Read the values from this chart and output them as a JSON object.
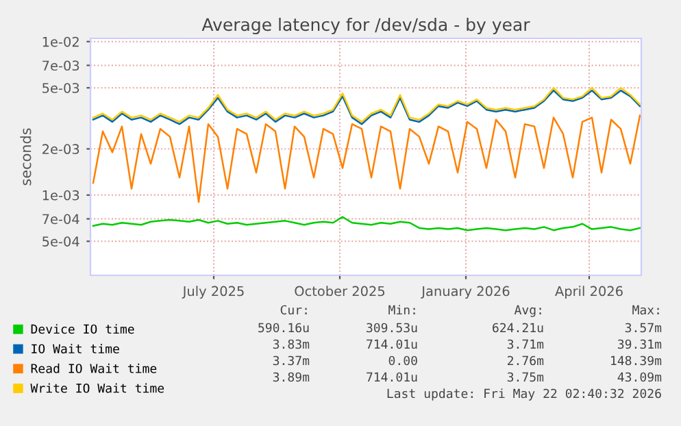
{
  "chart_data": {
    "type": "line",
    "title": "Average latency for /dev/sda - by year",
    "ylabel": "seconds",
    "log": "y",
    "grid": true,
    "legend": "bottom left",
    "marker": "none",
    "line_style": "solid",
    "ylim": [
      0.0003,
      0.0105
    ],
    "yticks": [
      {
        "value": 0.01,
        "label": "1e-02"
      },
      {
        "value": 0.007,
        "label": "7e-03"
      },
      {
        "value": 0.005,
        "label": "5e-03"
      },
      {
        "value": 0.002,
        "label": "2e-03"
      },
      {
        "value": 0.001,
        "label": "1e-03"
      },
      {
        "value": 0.0007,
        "label": "7e-04"
      },
      {
        "value": 0.0005,
        "label": "5e-04"
      }
    ],
    "xlim": [
      "2025-04-15",
      "2026-05-22"
    ],
    "xticks": [
      {
        "value": "2025-07-14",
        "label": "July 2025"
      },
      {
        "value": "2025-10-14",
        "label": "October 2025"
      },
      {
        "value": "2026-01-14",
        "label": "January 2026"
      },
      {
        "value": "2026-04-14",
        "label": "April 2026"
      }
    ],
    "x": [
      "2025-04-17",
      "2025-04-24",
      "2025-05-01",
      "2025-05-08",
      "2025-05-15",
      "2025-05-22",
      "2025-05-29",
      "2025-06-05",
      "2025-06-12",
      "2025-06-19",
      "2025-06-26",
      "2025-07-03",
      "2025-07-10",
      "2025-07-17",
      "2025-07-24",
      "2025-07-31",
      "2025-08-07",
      "2025-08-14",
      "2025-08-21",
      "2025-08-28",
      "2025-09-04",
      "2025-09-11",
      "2025-09-18",
      "2025-09-25",
      "2025-10-02",
      "2025-10-09",
      "2025-10-16",
      "2025-10-23",
      "2025-10-30",
      "2025-11-06",
      "2025-11-13",
      "2025-11-20",
      "2025-11-27",
      "2025-12-04",
      "2025-12-11",
      "2025-12-18",
      "2025-12-25",
      "2026-01-01",
      "2026-01-08",
      "2026-01-15",
      "2026-01-22",
      "2026-01-29",
      "2026-02-05",
      "2026-02-12",
      "2026-02-19",
      "2026-02-26",
      "2026-03-05",
      "2026-03-12",
      "2026-03-19",
      "2026-03-26",
      "2026-04-02",
      "2026-04-09",
      "2026-04-16",
      "2026-04-23",
      "2026-04-30",
      "2026-05-07",
      "2026-05-14",
      "2026-05-21"
    ],
    "series": [
      {
        "name": "Device IO time",
        "color": "#00cc00",
        "values": [
          0.00063,
          0.00065,
          0.00064,
          0.00066,
          0.00065,
          0.00064,
          0.00067,
          0.00068,
          0.00069,
          0.00068,
          0.00067,
          0.00069,
          0.00066,
          0.00068,
          0.00065,
          0.00066,
          0.00064,
          0.00065,
          0.00066,
          0.00067,
          0.00068,
          0.00066,
          0.00064,
          0.00066,
          0.00067,
          0.00066,
          0.00072,
          0.00066,
          0.00065,
          0.00064,
          0.00066,
          0.00065,
          0.00067,
          0.00066,
          0.00061,
          0.0006,
          0.00061,
          0.0006,
          0.00061,
          0.00059,
          0.0006,
          0.00061,
          0.0006,
          0.00059,
          0.0006,
          0.00061,
          0.0006,
          0.00062,
          0.00059,
          0.00061,
          0.00062,
          0.00065,
          0.0006,
          0.00061,
          0.00062,
          0.0006,
          0.00059,
          0.00061
        ]
      },
      {
        "name": "IO Wait time",
        "color": "#0066b3",
        "values": [
          0.0031,
          0.0033,
          0.003,
          0.0034,
          0.0031,
          0.0032,
          0.003,
          0.0033,
          0.0031,
          0.0029,
          0.0032,
          0.0031,
          0.0036,
          0.0043,
          0.0035,
          0.0032,
          0.0033,
          0.0031,
          0.0034,
          0.003,
          0.0033,
          0.0032,
          0.0034,
          0.0032,
          0.0033,
          0.0035,
          0.0044,
          0.0032,
          0.0029,
          0.0033,
          0.0035,
          0.0032,
          0.0043,
          0.0031,
          0.003,
          0.0033,
          0.0038,
          0.0037,
          0.004,
          0.0038,
          0.0041,
          0.0036,
          0.0035,
          0.0036,
          0.0035,
          0.0036,
          0.0037,
          0.0041,
          0.0048,
          0.0042,
          0.0041,
          0.0043,
          0.0048,
          0.0042,
          0.0043,
          0.0048,
          0.0044,
          0.0038
        ]
      },
      {
        "name": "Read IO Wait time",
        "color": "#ff8000",
        "values": [
          0.0012,
          0.0026,
          0.0019,
          0.0028,
          0.0011,
          0.0025,
          0.0016,
          0.0027,
          0.0024,
          0.0013,
          0.0028,
          0.0009,
          0.0029,
          0.0024,
          0.0011,
          0.0027,
          0.0025,
          0.0014,
          0.0029,
          0.0026,
          0.0011,
          0.0028,
          0.0024,
          0.0013,
          0.0027,
          0.0025,
          0.0015,
          0.0029,
          0.0027,
          0.0013,
          0.0028,
          0.0026,
          0.0011,
          0.0027,
          0.0024,
          0.0016,
          0.0028,
          0.0026,
          0.0014,
          0.003,
          0.0027,
          0.0015,
          0.0031,
          0.0026,
          0.0013,
          0.0029,
          0.0028,
          0.0015,
          0.0032,
          0.0025,
          0.0013,
          0.003,
          0.0032,
          0.0014,
          0.0031,
          0.0027,
          0.0016,
          0.0033
        ]
      },
      {
        "name": "Write IO Wait time",
        "color": "#ffcc00",
        "values": [
          0.0032,
          0.0034,
          0.0031,
          0.0035,
          0.0032,
          0.0033,
          0.0031,
          0.0034,
          0.0032,
          0.003,
          0.0033,
          0.0032,
          0.0037,
          0.0045,
          0.0036,
          0.0033,
          0.0034,
          0.0032,
          0.0035,
          0.0031,
          0.0034,
          0.0033,
          0.0035,
          0.0033,
          0.0034,
          0.0036,
          0.0046,
          0.0033,
          0.003,
          0.0034,
          0.0036,
          0.0033,
          0.0045,
          0.0032,
          0.0031,
          0.0034,
          0.0039,
          0.0038,
          0.0041,
          0.0039,
          0.0042,
          0.0037,
          0.0036,
          0.0037,
          0.0036,
          0.0037,
          0.0038,
          0.0042,
          0.005,
          0.0043,
          0.0042,
          0.0044,
          0.005,
          0.0043,
          0.0044,
          0.005,
          0.0045,
          0.0039
        ]
      }
    ],
    "annotations": [
      "Cur:",
      "Min:",
      "Avg:",
      "Max:",
      "590.16u",
      "309.53u",
      "624.21u",
      "3.57m",
      "3.83m",
      "714.01u",
      "3.71m",
      "39.31m",
      "3.37m",
      "0.00",
      "2.76m",
      "148.39m",
      "3.89m",
      "714.01u",
      "3.75m",
      "43.09m",
      "Last update: Fri May 22 02:40:32 2026"
    ]
  }
}
